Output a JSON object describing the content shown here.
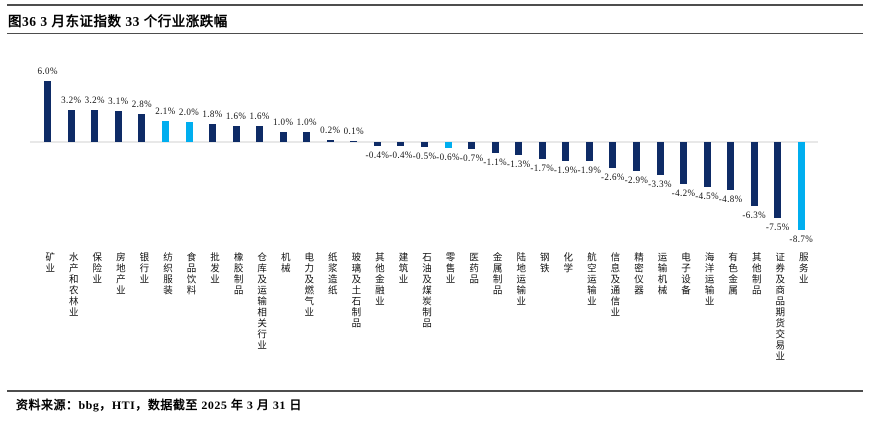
{
  "figure": {
    "title": "图36 3 月东证指数 33 个行业涨跌幅",
    "source_note": "资料来源：bbg，HTI，数据截至 2025 年 3 月 31 日"
  },
  "colors": {
    "bar_default": "#0e2b66",
    "bar_highlight": "#00aeef",
    "axis_line": "#e8e8e8",
    "rule_line": "#4d4d4d"
  },
  "chart_data": {
    "type": "bar",
    "title": "3 月东证指数 33 个行业涨跌幅",
    "xlabel": "",
    "ylabel": "",
    "unit": "%",
    "ylim": [
      -8.7,
      6.0
    ],
    "grid": false,
    "legend": "none",
    "categories": [
      "矿业",
      "水产和农林业",
      "保险业",
      "房地产业",
      "银行业",
      "纺织服装",
      "食品饮料",
      "批发业",
      "橡胶制品",
      "仓库及运输相关行业",
      "机械",
      "电力及燃气业",
      "纸浆造纸",
      "玻璃及土石制品",
      "其他金融业",
      "建筑业",
      "石油及煤炭制品",
      "零售业",
      "医药品",
      "金属制品",
      "陆地运输业",
      "钢铁",
      "化学",
      "航空运输业",
      "信息及通信业",
      "精密仪器",
      "运输机械",
      "电子设备",
      "海洋运输业",
      "有色金属",
      "其他制品",
      "证券及商品期货交易业",
      "服务业"
    ],
    "values": [
      6.0,
      3.2,
      3.2,
      3.1,
      2.8,
      2.1,
      2.0,
      1.8,
      1.6,
      1.6,
      1.0,
      1.0,
      0.2,
      0.1,
      -0.4,
      -0.4,
      -0.5,
      -0.6,
      -0.7,
      -1.1,
      -1.3,
      -1.7,
      -1.9,
      -1.9,
      -2.6,
      -2.9,
      -3.3,
      -4.2,
      -4.5,
      -4.8,
      -6.3,
      -7.5,
      -8.7
    ],
    "labels": [
      "6.0%",
      "3.2%",
      "3.2%",
      "3.1%",
      "2.8%",
      "2.1%",
      "2.0%",
      "1.8%",
      "1.6%",
      "1.6%",
      "1.0%",
      "1.0%",
      "0.2%",
      "0.1%",
      "-0.4%",
      "-0.4%",
      "-0.5%",
      "-0.6%",
      "-0.7%",
      "-1.1%",
      "-1.3%",
      "-1.7%",
      "-1.9%",
      "-1.9%",
      "-2.6%",
      "-2.9%",
      "-3.3%",
      "-4.2%",
      "-4.5%",
      "-4.8%",
      "-6.3%",
      "-7.5%",
      "-8.7%"
    ],
    "highlight_indices": [
      5,
      6,
      17,
      32
    ]
  }
}
